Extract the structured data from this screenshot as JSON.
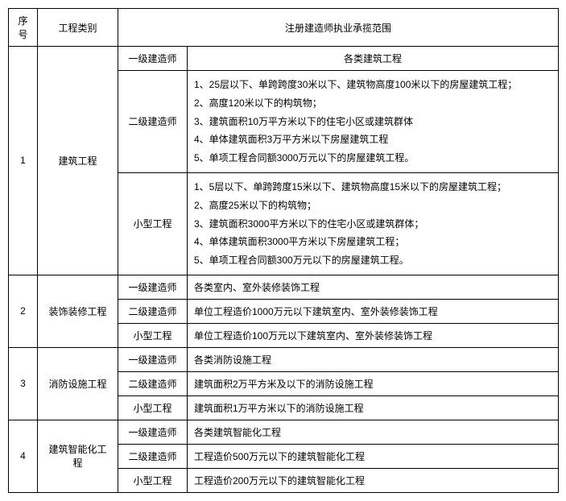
{
  "header": {
    "idx": "序号",
    "category": "工程类别",
    "scope": "注册建造师执业承揽范围"
  },
  "levels": {
    "l1": "一级建造师",
    "l2": "二级建造师",
    "sm": "小型工程"
  },
  "rows": [
    {
      "idx": "1",
      "category": "建筑工程",
      "l1": "各类建筑工程",
      "l2": "1、25层以下、单跨跨度30米以下、建筑物高度100米以下的房屋建筑工程；\n2、高度120米以下的构筑物；\n3、建筑面积10万平方米以下的住宅小区或建筑群体\n4、单体建筑面积3万平方米以下房屋建筑工程\n5、单项工程合同额3000万元以下的房屋建筑工程。",
      "sm": "1、5层以下、单跨跨度15米以下、建筑物高度15米以下的房屋建筑工程；\n2、高度25米以下的构筑物；\n3、建筑面积3000平方米以下的住宅小区或建筑群体；\n4、单体建筑面积3000平方米以下房屋建筑工程；\n5、单项工程合同额300万元以下的房屋建筑工程。"
    },
    {
      "idx": "2",
      "category": "装饰装修工程",
      "l1": "各类室内、室外装修装饰工程",
      "l2": "单位工程造价1000万元以下建筑室内、室外装修装饰工程",
      "sm": "单位工程造价100万元以下建筑室内、室外装修装饰工程"
    },
    {
      "idx": "3",
      "category": "消防设施工程",
      "l1": "各类消防设施工程",
      "l2": "建筑面积2万平方米及以下的消防设施工程",
      "sm": "建筑面积1万平方米以下的消防设施工程"
    },
    {
      "idx": "4",
      "category": "建筑智能化工程",
      "l1": "各类建筑智能化工程",
      "l2": "工程造价500万元以下的建筑智能化工程",
      "sm": "工程造价200万元以下的建筑智能化工程"
    }
  ]
}
